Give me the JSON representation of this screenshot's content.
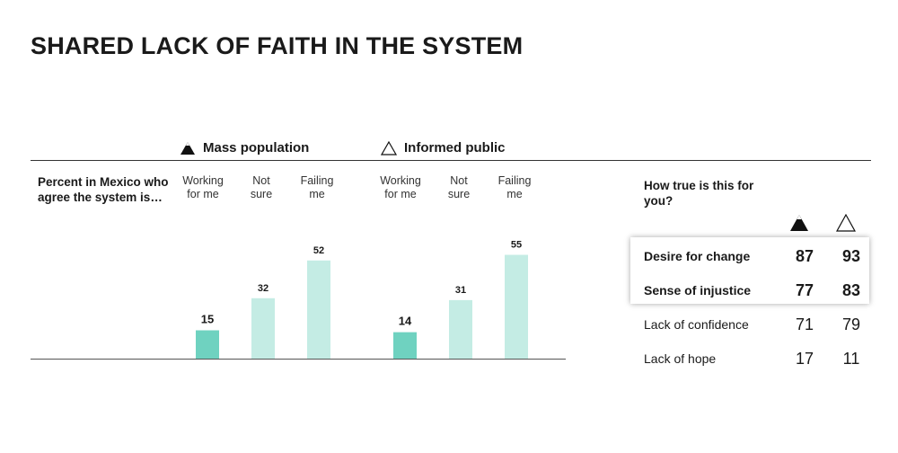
{
  "title": "SHARED LACK OF FAITH IN THE SYSTEM",
  "intro": "Percent in Mexico who agree the system is…",
  "legend": {
    "mass": "Mass population",
    "informed": "Informed public"
  },
  "chart_data": {
    "type": "bar",
    "categories": [
      "Working for me",
      "Not sure",
      "Failing me"
    ],
    "series": [
      {
        "name": "Mass population",
        "values": [
          15,
          32,
          52
        ]
      },
      {
        "name": "Informed public",
        "values": [
          14,
          31,
          55
        ]
      }
    ],
    "colors": [
      "#6fd2c0",
      "#c4ece4",
      "#c4ece4"
    ],
    "ylim": [
      0,
      100
    ]
  },
  "category_labels": [
    "Working\nfor me",
    "Not\nsure",
    "Failing\nme"
  ],
  "table": {
    "question": "How true is this for you?",
    "rows": [
      {
        "label": "Desire for change",
        "mass": "87",
        "informed": "93",
        "highlight": true
      },
      {
        "label": "Sense of injustice",
        "mass": "77",
        "informed": "83",
        "highlight": true
      },
      {
        "label": "Lack of confidence",
        "mass": "71",
        "informed": "79",
        "highlight": false
      },
      {
        "label": "Lack of hope",
        "mass": "17",
        "informed": "11",
        "highlight": false
      }
    ]
  }
}
